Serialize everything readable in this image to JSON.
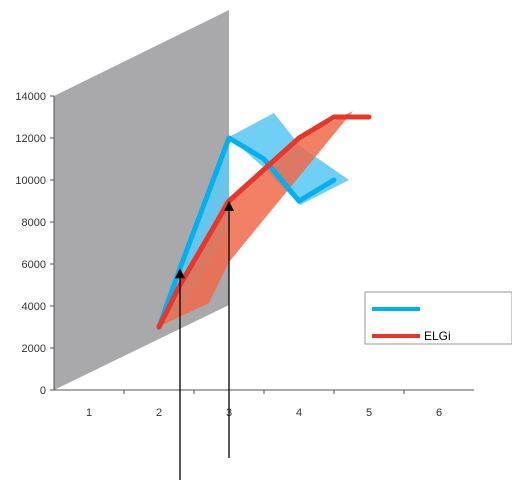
{
  "chart_data": {
    "type": "line",
    "title": "",
    "xlabel": "",
    "ylabel": "",
    "x_ticks": [
      "1",
      "2",
      "3",
      "4",
      "5",
      "6"
    ],
    "y_ticks": [
      "0",
      "2000",
      "4000",
      "6000",
      "8000",
      "10000",
      "12000",
      "14000"
    ],
    "xlim": [
      0.5,
      6.5
    ],
    "ylim": [
      0,
      14000
    ],
    "grid": false,
    "legend_position": "right",
    "legend": [
      "",
      "ELGi"
    ],
    "series": [
      {
        "name": "",
        "color": "#00b0f0",
        "x": [
          2,
          2.3,
          3,
          3.5,
          4,
          4.5
        ],
        "y": [
          3000,
          5800,
          12000,
          11000,
          9000,
          10000
        ]
      },
      {
        "name": "ELGi",
        "color": "#e8362a",
        "x": [
          2,
          2.3,
          3,
          4,
          4.5,
          5
        ],
        "y": [
          3000,
          5000,
          9000,
          12000,
          13000,
          13000
        ]
      }
    ],
    "annotations": [
      {
        "type": "arrow",
        "x": 2.3,
        "y": 5800
      },
      {
        "type": "arrow",
        "x": 3,
        "y": 9000
      }
    ],
    "colors": {
      "back_wall": "#a9a9ab",
      "blue_fill": "#5cc8f2",
      "red_fill": "#ee6a4a",
      "axis": "#555555"
    }
  }
}
